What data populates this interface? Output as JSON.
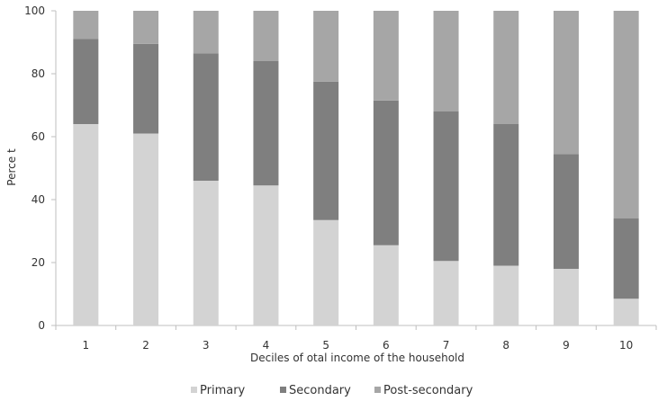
{
  "chart_data": {
    "type": "bar",
    "stacked": true,
    "categories": [
      "1",
      "2",
      "3",
      "4",
      "5",
      "6",
      "7",
      "8",
      "9",
      "10"
    ],
    "series": [
      {
        "name": "Primary",
        "color": "#d3d3d3",
        "values": [
          64,
          61,
          46,
          44.5,
          33.5,
          25.5,
          20.5,
          19,
          18,
          8.5
        ]
      },
      {
        "name": "Secondary",
        "color": "#7f7f7f",
        "values": [
          27,
          28.5,
          40.5,
          39.5,
          44,
          46,
          47.5,
          45,
          36.5,
          25.5
        ]
      },
      {
        "name": "Post-secondary",
        "color": "#a6a6a6",
        "values": [
          9,
          10.5,
          13.5,
          16,
          22.5,
          28.5,
          32,
          36,
          45.5,
          66
        ]
      }
    ],
    "xlabel": "Deciles of otal income of the household",
    "ylabel": "Perce t",
    "ylim": [
      0,
      100
    ],
    "yticks": [
      0,
      20,
      40,
      60,
      80,
      100
    ],
    "grid": false,
    "legend_position": "bottom"
  }
}
